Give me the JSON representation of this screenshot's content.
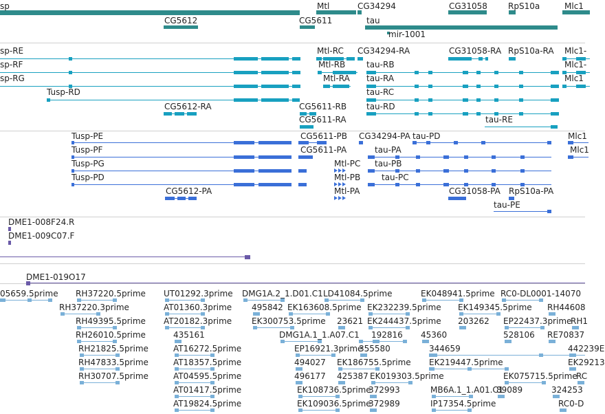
{
  "colors": {
    "gene": "#2e8b8b",
    "transcript": "#18a0c0",
    "protein": "#3a6fd8",
    "clone": "#6a5aa8",
    "est": "#7ab0d8",
    "divider": "#cfcfcf",
    "label": "#222222"
  },
  "tracks": {
    "genes": {
      "features": [
        {
          "label": "sp"
        },
        {
          "label": "CG5612"
        },
        {
          "label": "Mtl"
        },
        {
          "label": "CG34294"
        },
        {
          "label": "CG5611"
        },
        {
          "label": "tau"
        },
        {
          "label": "mir-1001"
        },
        {
          "label": "CG31058"
        },
        {
          "label": "RpS10a"
        },
        {
          "label": "Mlc1"
        }
      ]
    },
    "transcripts": {
      "features": [
        {
          "label": "sp-RE"
        },
        {
          "label": "sp-RF"
        },
        {
          "label": "sp-RG"
        },
        {
          "label": "Tusp-RD"
        },
        {
          "label": "CG5612-RA"
        },
        {
          "label": "Mtl-RC"
        },
        {
          "label": "Mtl-RB"
        },
        {
          "label": "Mtl-RA"
        },
        {
          "label": "CG34294-RA"
        },
        {
          "label": "CG5611-RB"
        },
        {
          "label": "CG5611-RA"
        },
        {
          "label": "tau-RB"
        },
        {
          "label": "tau-RA"
        },
        {
          "label": "tau-RC"
        },
        {
          "label": "tau-RD"
        },
        {
          "label": "tau-RE"
        },
        {
          "label": "CG31058-RA"
        },
        {
          "label": "RpS10a-RA"
        },
        {
          "label": "Mlc1-"
        },
        {
          "label": "Mlc1-"
        },
        {
          "label": "Mlc1"
        }
      ]
    },
    "proteins": {
      "features": [
        {
          "label": "Tusp-PE"
        },
        {
          "label": "Tusp-PF"
        },
        {
          "label": "Tusp-PG"
        },
        {
          "label": "Tusp-PD"
        },
        {
          "label": "CG5612-PA"
        },
        {
          "label": "CG5611-PB"
        },
        {
          "label": "CG5611-PA"
        },
        {
          "label": "CG34294-PA"
        },
        {
          "label": "tau-PD"
        },
        {
          "label": "tau-PA"
        },
        {
          "label": "tau-PB"
        },
        {
          "label": "tau-PC"
        },
        {
          "label": "Mtl-PC"
        },
        {
          "label": "Mtl-PB"
        },
        {
          "label": "Mtl-PA"
        },
        {
          "label": "CG31058-PA"
        },
        {
          "label": "RpS10a-PA"
        },
        {
          "label": "tau-PE"
        },
        {
          "label": "Mlc1"
        },
        {
          "label": "Mlc1"
        }
      ]
    },
    "clones": {
      "features": [
        {
          "label": "DME1-008F24.R"
        },
        {
          "label": "DME1-009C07.F"
        },
        {
          "label": "DME1-019O17"
        }
      ]
    },
    "ests": {
      "features": [
        {
          "label": "05659.5prime"
        },
        {
          "label": "RH37220.5prime"
        },
        {
          "label": "UT01292.3prime"
        },
        {
          "label": "DMG1A.2_1.D01.C1"
        },
        {
          "label": "LD41084.5prime"
        },
        {
          "label": "EK048941.5prime"
        },
        {
          "label": "RC0-DL0001-14070"
        },
        {
          "label": "RH37220.3prime"
        },
        {
          "label": "AT01360.3prime"
        },
        {
          "label": "495842"
        },
        {
          "label": "EK163608.5prime"
        },
        {
          "label": "EK232239.5prime"
        },
        {
          "label": "EK149345.5prime"
        },
        {
          "label": "RH44608"
        },
        {
          "label": "RH49395.5prime"
        },
        {
          "label": "AT20182.3prime"
        },
        {
          "label": "EK300753.5prime"
        },
        {
          "label": "23621"
        },
        {
          "label": "EK244437.5prime"
        },
        {
          "label": "203262"
        },
        {
          "label": "EP22437.3prime"
        },
        {
          "label": "RH1"
        },
        {
          "label": "RH26010.5prime"
        },
        {
          "label": "435161"
        },
        {
          "label": "DMG1A.1_1.A07.C1"
        },
        {
          "label": "192816"
        },
        {
          "label": "45360"
        },
        {
          "label": "528106"
        },
        {
          "label": "RE70837"
        },
        {
          "label": "RH21825.5prime"
        },
        {
          "label": "AT16272.5prime"
        },
        {
          "label": "EP16921.3prime"
        },
        {
          "label": "355580"
        },
        {
          "label": "344659"
        },
        {
          "label": "442239E"
        },
        {
          "label": "RH47833.5prime"
        },
        {
          "label": "AT18357.5prime"
        },
        {
          "label": "494027"
        },
        {
          "label": "EK186755.5prime"
        },
        {
          "label": "EK219447.5prime"
        },
        {
          "label": "EK29213"
        },
        {
          "label": "RH30707.5prime"
        },
        {
          "label": "AT04595.5prime"
        },
        {
          "label": "496177"
        },
        {
          "label": "425387"
        },
        {
          "label": "EK019303.5prime"
        },
        {
          "label": "EK075715.5prime"
        },
        {
          "label": "RC"
        },
        {
          "label": "AT01417.5prime"
        },
        {
          "label": "EK108736.5prime"
        },
        {
          "label": "372993"
        },
        {
          "label": "MB6A.1_1.A01.C1"
        },
        {
          "label": "89089"
        },
        {
          "label": "324253"
        },
        {
          "label": "AT19824.5prime"
        },
        {
          "label": "EK109036.5prime"
        },
        {
          "label": "372989"
        },
        {
          "label": "IP17354.5prime"
        },
        {
          "label": "RC0-D"
        }
      ]
    }
  }
}
